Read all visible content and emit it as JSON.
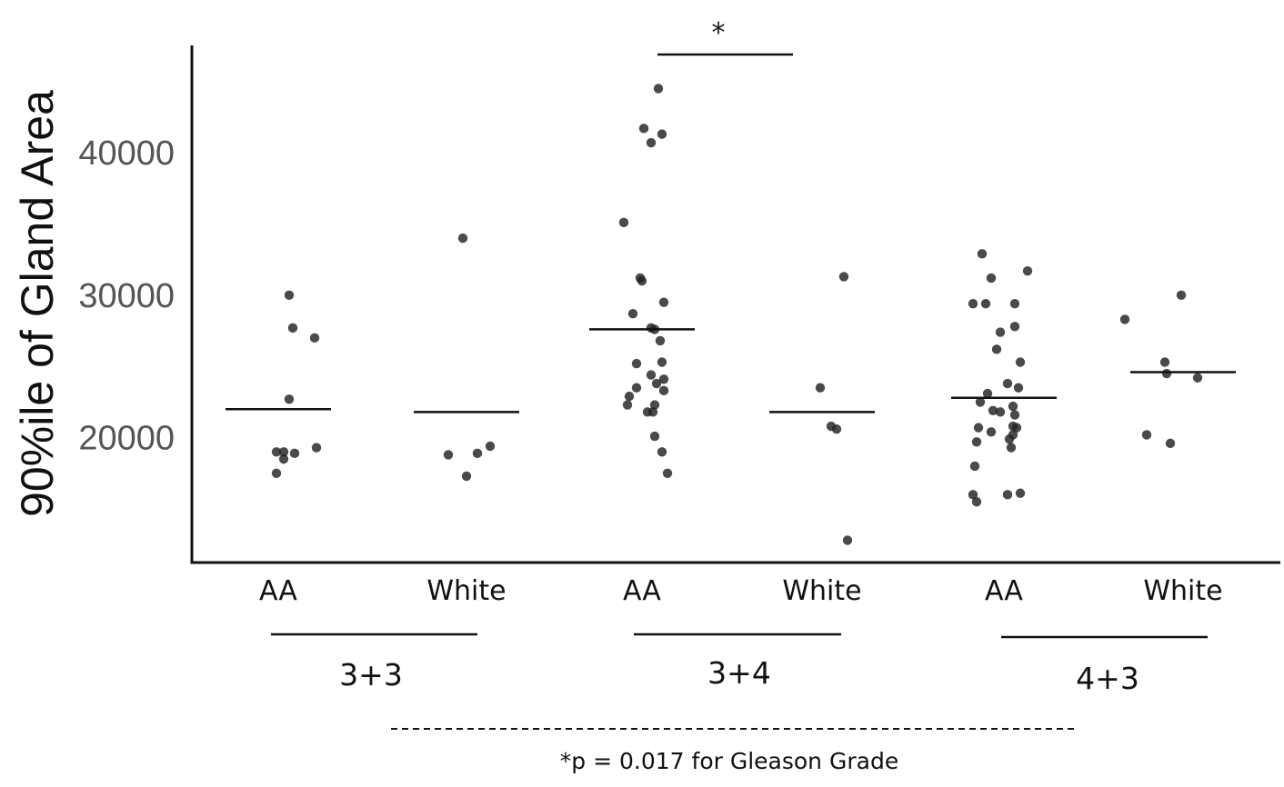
{
  "chart_data": {
    "type": "scatter",
    "title": "",
    "xlabel": "",
    "ylabel": "90%ile of Gland Area",
    "ylim": [
      11500,
      47500
    ],
    "y_ticks": [
      20000,
      30000,
      40000
    ],
    "y_tick_labels": [
      "20000",
      "30000",
      "40000"
    ],
    "grid": false,
    "legend": "none",
    "point_color": "#222222",
    "categories": [
      "AA",
      "White",
      "AA",
      "White",
      "AA",
      "White"
    ],
    "groups": [
      {
        "label": "3+3",
        "categories": [
          0,
          1
        ]
      },
      {
        "label": "3+4",
        "categories": [
          2,
          3
        ]
      },
      {
        "label": "4+3",
        "categories": [
          4,
          5
        ]
      }
    ],
    "series": [
      {
        "category": "AA",
        "group": "3+3",
        "mean": 22000,
        "points": [
          {
            "x_offset": 12,
            "y": 30000
          },
          {
            "x_offset": 16,
            "y": 27700
          },
          {
            "x_offset": 40,
            "y": 27000
          },
          {
            "x_offset": 12,
            "y": 22700
          },
          {
            "x_offset": -2,
            "y": 19000
          },
          {
            "x_offset": 6,
            "y": 19000
          },
          {
            "x_offset": 18,
            "y": 18900
          },
          {
            "x_offset": 42,
            "y": 19300
          },
          {
            "x_offset": 6,
            "y": 18500
          },
          {
            "x_offset": -2,
            "y": 17500
          }
        ]
      },
      {
        "category": "White",
        "group": "3+3",
        "mean": 21800,
        "points": [
          {
            "x_offset": -4,
            "y": 34000
          },
          {
            "x_offset": -20,
            "y": 18800
          },
          {
            "x_offset": 12,
            "y": 18900
          },
          {
            "x_offset": 26,
            "y": 19400
          },
          {
            "x_offset": 0,
            "y": 17300
          }
        ]
      },
      {
        "category": "AA",
        "group": "3+4",
        "mean": 27600,
        "points": [
          {
            "x_offset": 18,
            "y": 44500
          },
          {
            "x_offset": 2,
            "y": 41700
          },
          {
            "x_offset": 22,
            "y": 41300
          },
          {
            "x_offset": 10,
            "y": 40700
          },
          {
            "x_offset": -20,
            "y": 35100
          },
          {
            "x_offset": -2,
            "y": 31200
          },
          {
            "x_offset": 0,
            "y": 31000
          },
          {
            "x_offset": 24,
            "y": 29500
          },
          {
            "x_offset": -10,
            "y": 28700
          },
          {
            "x_offset": 10,
            "y": 27700
          },
          {
            "x_offset": 14,
            "y": 27600
          },
          {
            "x_offset": 20,
            "y": 26800
          },
          {
            "x_offset": -6,
            "y": 25200
          },
          {
            "x_offset": 22,
            "y": 25300
          },
          {
            "x_offset": 10,
            "y": 24400
          },
          {
            "x_offset": 24,
            "y": 24100
          },
          {
            "x_offset": 16,
            "y": 23800
          },
          {
            "x_offset": -6,
            "y": 23500
          },
          {
            "x_offset": 24,
            "y": 23300
          },
          {
            "x_offset": -14,
            "y": 22900
          },
          {
            "x_offset": -16,
            "y": 22300
          },
          {
            "x_offset": 14,
            "y": 22300
          },
          {
            "x_offset": 6,
            "y": 21800
          },
          {
            "x_offset": 12,
            "y": 21800
          },
          {
            "x_offset": 14,
            "y": 20100
          },
          {
            "x_offset": 22,
            "y": 19000
          },
          {
            "x_offset": 28,
            "y": 17500
          }
        ]
      },
      {
        "category": "White",
        "group": "3+4",
        "mean": 21800,
        "points": [
          {
            "x_offset": 24,
            "y": 31300
          },
          {
            "x_offset": -2,
            "y": 23500
          },
          {
            "x_offset": 10,
            "y": 20800
          },
          {
            "x_offset": 16,
            "y": 20600
          },
          {
            "x_offset": 28,
            "y": 12800
          }
        ]
      },
      {
        "category": "AA",
        "group": "4+3",
        "mean": 22800,
        "points": [
          {
            "x_offset": -24,
            "y": 32900
          },
          {
            "x_offset": -14,
            "y": 31200
          },
          {
            "x_offset": 26,
            "y": 31700
          },
          {
            "x_offset": -34,
            "y": 29400
          },
          {
            "x_offset": -20,
            "y": 29400
          },
          {
            "x_offset": 12,
            "y": 29400
          },
          {
            "x_offset": 12,
            "y": 27800
          },
          {
            "x_offset": -4,
            "y": 27400
          },
          {
            "x_offset": -8,
            "y": 26200
          },
          {
            "x_offset": 18,
            "y": 25300
          },
          {
            "x_offset": 4,
            "y": 23800
          },
          {
            "x_offset": 16,
            "y": 23500
          },
          {
            "x_offset": -18,
            "y": 23100
          },
          {
            "x_offset": -26,
            "y": 22500
          },
          {
            "x_offset": 10,
            "y": 22200
          },
          {
            "x_offset": -12,
            "y": 21900
          },
          {
            "x_offset": -4,
            "y": 21800
          },
          {
            "x_offset": 12,
            "y": 21600
          },
          {
            "x_offset": -28,
            "y": 20700
          },
          {
            "x_offset": 10,
            "y": 20800
          },
          {
            "x_offset": 14,
            "y": 20700
          },
          {
            "x_offset": -14,
            "y": 20400
          },
          {
            "x_offset": 10,
            "y": 20200
          },
          {
            "x_offset": 6,
            "y": 19900
          },
          {
            "x_offset": -30,
            "y": 19700
          },
          {
            "x_offset": 8,
            "y": 19300
          },
          {
            "x_offset": -32,
            "y": 18000
          },
          {
            "x_offset": -34,
            "y": 16000
          },
          {
            "x_offset": 4,
            "y": 16000
          },
          {
            "x_offset": 18,
            "y": 16100
          },
          {
            "x_offset": -30,
            "y": 15500
          }
        ]
      },
      {
        "category": "White",
        "group": "4+3",
        "mean": 24600,
        "points": [
          {
            "x_offset": -64,
            "y": 28300
          },
          {
            "x_offset": -2,
            "y": 30000
          },
          {
            "x_offset": -20,
            "y": 25300
          },
          {
            "x_offset": -18,
            "y": 24500
          },
          {
            "x_offset": 16,
            "y": 24200
          },
          {
            "x_offset": -40,
            "y": 20200
          },
          {
            "x_offset": -14,
            "y": 19600
          }
        ]
      }
    ],
    "annotations": {
      "significance_marker": "*",
      "significance_between": [
        2,
        3
      ],
      "footnote": "*p = 0.017 for Gleason Grade"
    }
  }
}
